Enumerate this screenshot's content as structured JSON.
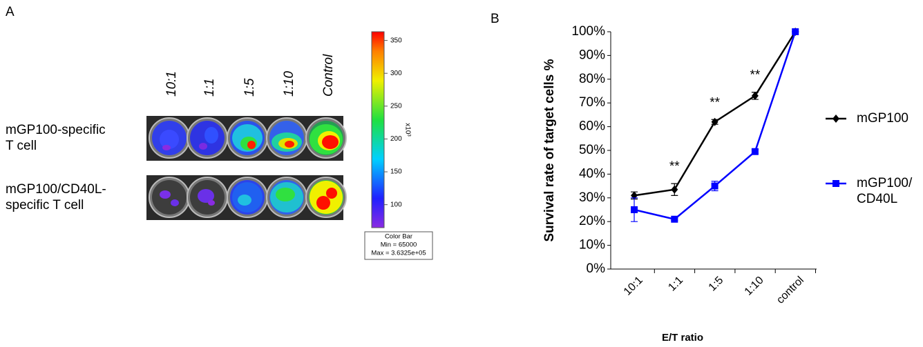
{
  "panel_labels": [
    "A",
    "B"
  ],
  "panel_a": {
    "columns": [
      "10:1",
      "1:1",
      "1:5",
      "1:10",
      "Control"
    ],
    "rows": [
      "mGP100-specific\nT cell",
      "mGP100/CD40L-\nspecific T cell"
    ],
    "colorbar": {
      "lim": [
        65,
        363.25
      ],
      "ticks": [
        100,
        150,
        200,
        250,
        300,
        350
      ],
      "unit": "x10³",
      "box": [
        "Color Bar",
        "Min = 65000",
        "Max = 3.6325e+05"
      ]
    }
  },
  "chart_data": {
    "type": "line",
    "categories": [
      "10:1",
      "1:1",
      "1:5",
      "1:10",
      "control"
    ],
    "series": [
      {
        "name": "mGP100",
        "color": "#000000",
        "marker": "diamond",
        "values": [
          31,
          33.5,
          62,
          73,
          100
        ],
        "errors": [
          1.5,
          2.5,
          1,
          1.5,
          0
        ]
      },
      {
        "name": "mGP100/\nCD40L",
        "color": "#0000ff",
        "marker": "square",
        "values": [
          25,
          21,
          35,
          49.5,
          100
        ],
        "errors": [
          5,
          0.5,
          2,
          0.8,
          0
        ]
      }
    ],
    "annotations": [
      {
        "text": "**",
        "x": "1:1"
      },
      {
        "text": "**",
        "x": "1:5"
      },
      {
        "text": "**",
        "x": "1:10"
      }
    ],
    "ylim": [
      0,
      100
    ],
    "yticks": [
      {
        "value": 0,
        "label": "0%"
      },
      {
        "value": 10,
        "label": "10%"
      },
      {
        "value": 20,
        "label": "20%"
      },
      {
        "value": 30,
        "label": "30%"
      },
      {
        "value": 40,
        "label": "40%"
      },
      {
        "value": 50,
        "label": "50%"
      },
      {
        "value": 60,
        "label": "60%"
      },
      {
        "value": 70,
        "label": "70%"
      },
      {
        "value": 80,
        "label": "80%"
      },
      {
        "value": 90,
        "label": "90%"
      },
      {
        "value": 100,
        "label": "100%"
      }
    ],
    "y_label": "Survival rate of target cells %",
    "x_label": "E/T ratio"
  }
}
